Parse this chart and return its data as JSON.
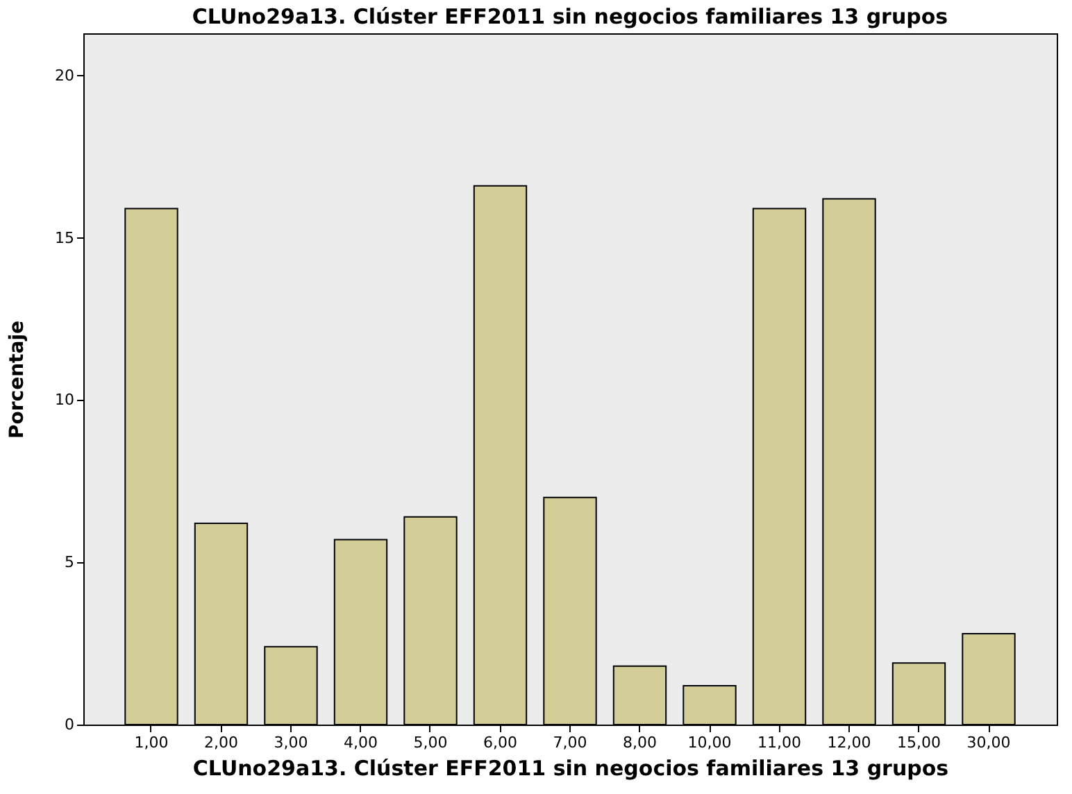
{
  "chart_data": {
    "type": "bar",
    "title": "CLUno29a13. Clúster EFF2011 sin negocios familiares 13 grupos",
    "xlabel": "CLUno29a13. Clúster EFF2011 sin negocios familiares 13 grupos",
    "ylabel": "Porcentaje",
    "categories": [
      "1,00",
      "2,00",
      "3,00",
      "4,00",
      "5,00",
      "6,00",
      "7,00",
      "8,00",
      "10,00",
      "11,00",
      "12,00",
      "15,00",
      "30,00"
    ],
    "values": [
      15.9,
      6.2,
      2.4,
      5.7,
      6.4,
      16.6,
      7.0,
      1.8,
      1.2,
      15.9,
      16.2,
      1.9,
      2.8
    ],
    "color": "#d3ce97",
    "ylim": [
      0,
      21.3
    ],
    "yticks": [
      0,
      5,
      10,
      15,
      20
    ],
    "grid": false
  }
}
